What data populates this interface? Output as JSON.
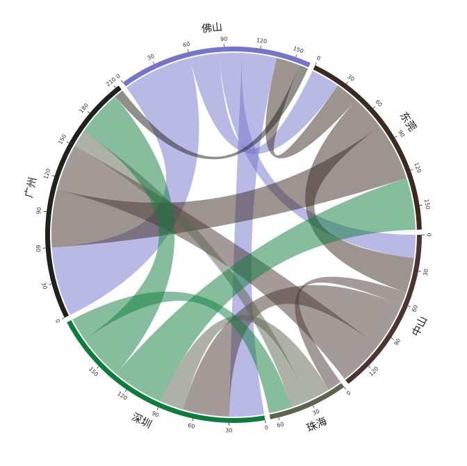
{
  "chart_data": {
    "type": "chord",
    "groups": [
      {
        "name": "佛山",
        "color": "#7474cc",
        "ticks": [
          0,
          30,
          60,
          90,
          120,
          150
        ]
      },
      {
        "name": "东莞",
        "color": "#3b2a22",
        "ticks": [
          0,
          30,
          60,
          90,
          120,
          150
        ]
      },
      {
        "name": "中山",
        "color": "#4a3530",
        "ticks": [
          0,
          30,
          60,
          90,
          120
        ]
      },
      {
        "name": "珠海",
        "color": "#5c6450",
        "ticks": [
          0,
          30,
          60
        ]
      },
      {
        "name": "深圳",
        "color": "#0e7d3c",
        "ticks": [
          0,
          30,
          60,
          90,
          120,
          150
        ]
      },
      {
        "name": "广州",
        "color": "#1f221c",
        "ticks": [
          0,
          30,
          60,
          90,
          120,
          150,
          180,
          210
        ]
      }
    ],
    "chords": [
      {
        "from": "佛山",
        "to": "广州",
        "value": 60
      },
      {
        "from": "佛山",
        "to": "东莞",
        "value": 25
      },
      {
        "from": "佛山",
        "to": "中山",
        "value": 20
      },
      {
        "from": "佛山",
        "to": "深圳",
        "value": 30
      },
      {
        "from": "东莞",
        "to": "佛山",
        "value": 20
      },
      {
        "from": "东莞",
        "to": "中山",
        "value": 30
      },
      {
        "from": "东莞",
        "to": "广州",
        "value": 50
      },
      {
        "from": "中山",
        "to": "珠海",
        "value": 12
      },
      {
        "from": "中山",
        "to": "深圳",
        "value": 40
      },
      {
        "from": "中山",
        "to": "广州",
        "value": 40
      },
      {
        "from": "珠海",
        "to": "深圳",
        "value": 20
      },
      {
        "from": "珠海",
        "to": "广州",
        "value": 15
      },
      {
        "from": "深圳",
        "to": "东莞",
        "value": 45
      },
      {
        "from": "深圳",
        "to": "广州",
        "value": 40
      },
      {
        "from": "深圳",
        "to": "珠海",
        "value": 20
      },
      {
        "from": "广州",
        "to": "佛山",
        "value": 8
      }
    ]
  }
}
